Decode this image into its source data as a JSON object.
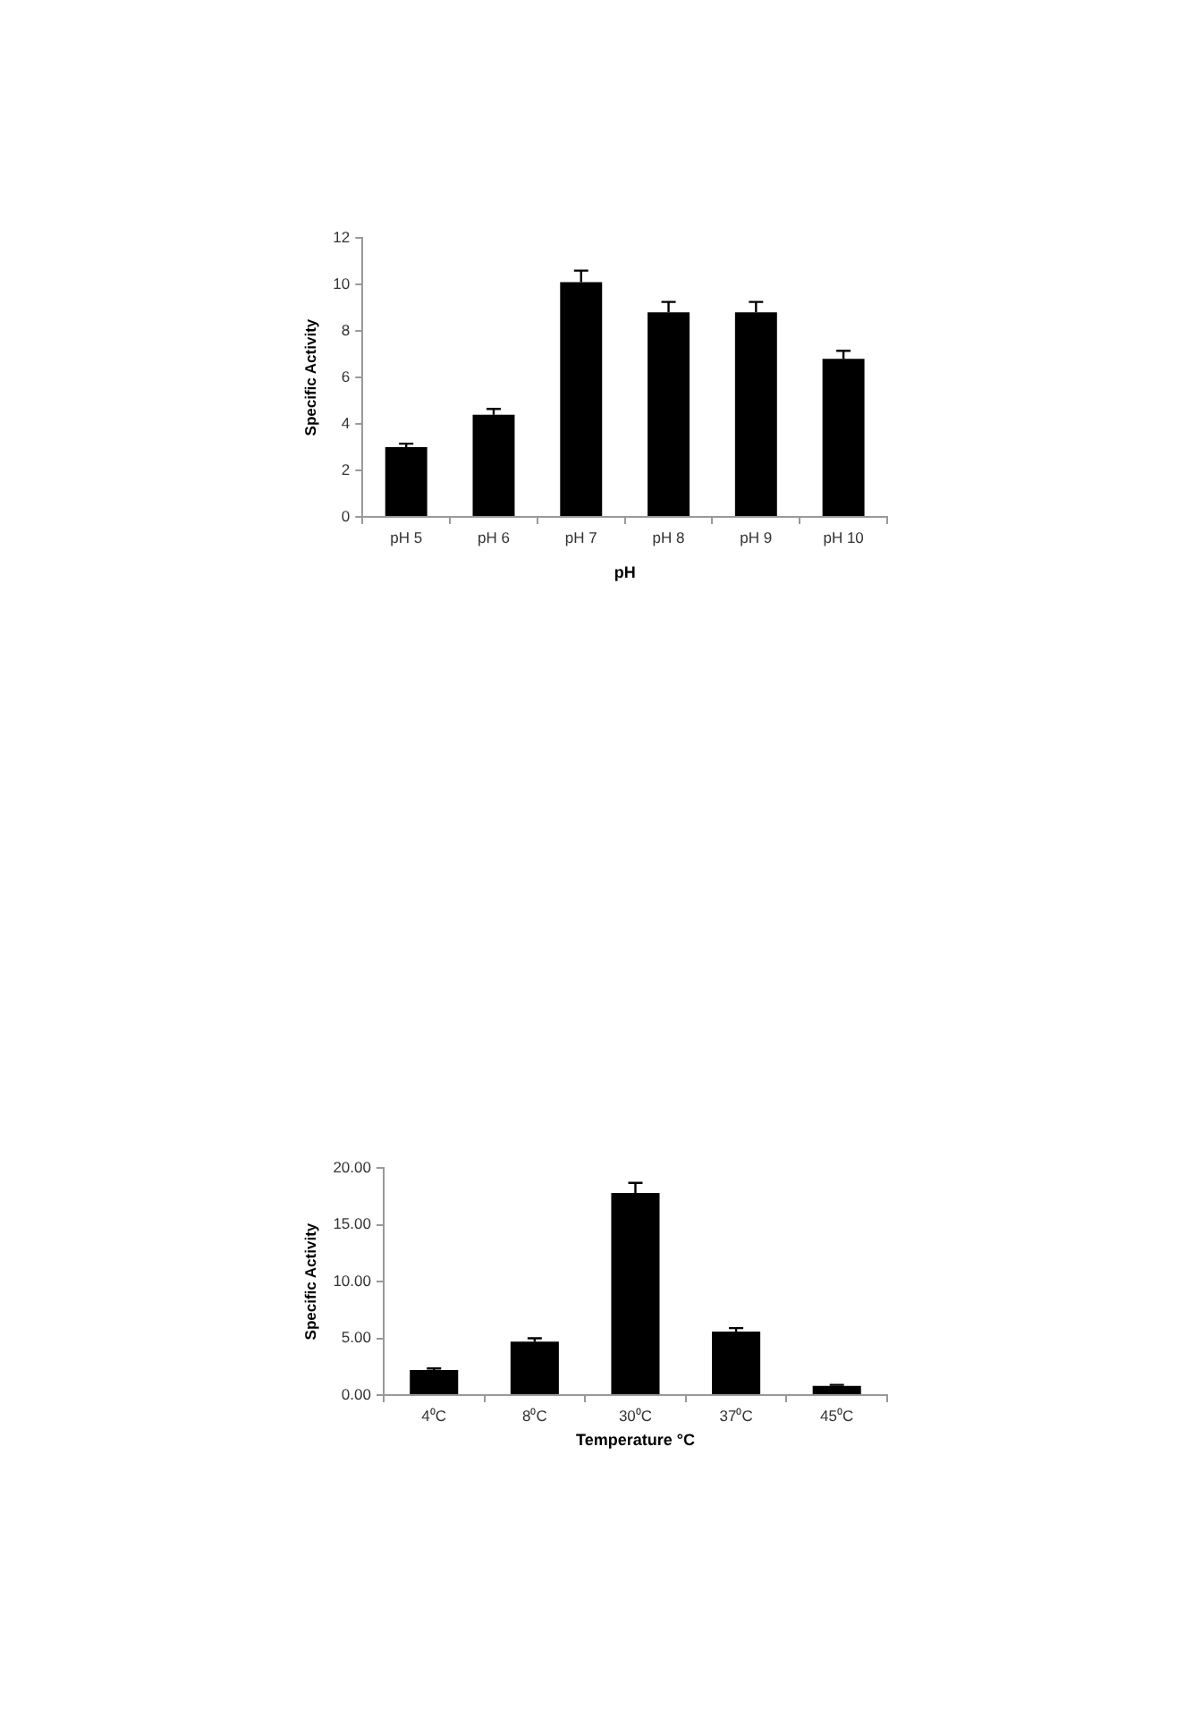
{
  "chart_data": [
    {
      "type": "bar",
      "xlabel": "pH",
      "ylabel": "Specific Activity",
      "categories": [
        "pH 5",
        "pH 6",
        "pH 7",
        "pH 8",
        "pH 9",
        "pH 10"
      ],
      "values": [
        3.0,
        4.4,
        10.1,
        8.8,
        8.8,
        6.8
      ],
      "color": "#000000",
      "errors": [
        [
          3.0,
          3.15
        ],
        [
          4.4,
          4.65
        ],
        [
          10.1,
          10.6
        ],
        [
          8.8,
          9.25
        ],
        [
          8.8,
          9.25
        ],
        [
          6.8,
          7.15
        ]
      ],
      "ylim": [
        0,
        12
      ],
      "yticks": [
        0,
        2,
        4,
        6,
        8,
        10,
        12
      ],
      "grid": false,
      "legend": false
    },
    {
      "type": "bar",
      "xlabel": "Temperature °C",
      "ylabel": "Specific Activity",
      "categories": [
        "4⁰C",
        "8⁰C",
        "30⁰C",
        "37⁰C",
        "45⁰C"
      ],
      "values": [
        2.2,
        4.7,
        17.8,
        5.6,
        0.8
      ],
      "color": "#000000",
      "errors": [
        [
          2.2,
          2.35
        ],
        [
          4.7,
          5.0
        ],
        [
          17.8,
          18.7
        ],
        [
          5.6,
          5.9
        ],
        [
          0.8,
          0.9
        ]
      ],
      "ylim": [
        0,
        20
      ],
      "yticks": [
        {
          "value": 0,
          "label": "0.00"
        },
        {
          "value": 5,
          "label": "5.00"
        },
        {
          "value": 10,
          "label": "10.00"
        },
        {
          "value": 15,
          "label": "15.00"
        },
        {
          "value": 20,
          "label": "20.00"
        }
      ],
      "grid": false,
      "legend": false
    }
  ]
}
